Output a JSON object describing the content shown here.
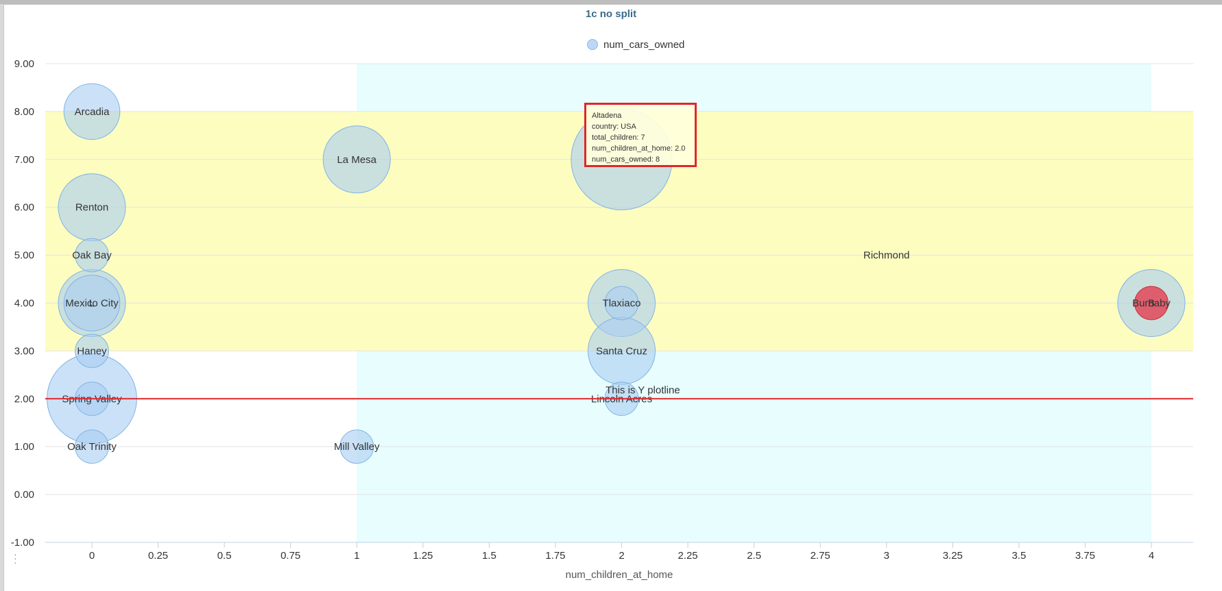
{
  "chart_data": {
    "type": "bubble",
    "title": "1c no split",
    "xlabel": "num_children_at_home",
    "ylabel": "",
    "xlim": [
      -0.18,
      4.16
    ],
    "ylim": [
      -1,
      9
    ],
    "x_ticks": [
      0,
      0.25,
      0.5,
      0.75,
      1,
      1.25,
      1.5,
      1.75,
      2,
      2.25,
      2.5,
      2.75,
      3,
      3.25,
      3.5,
      3.75,
      4
    ],
    "x_tick_labels": [
      "0",
      "0.25",
      "0.5",
      "0.75",
      "1",
      "1.25",
      "1.5",
      "1.75",
      "2",
      "2.25",
      "2.5",
      "2.75",
      "3",
      "3.25",
      "3.5",
      "3.75",
      "4"
    ],
    "y_ticks": [
      -1,
      0,
      1,
      2,
      3,
      4,
      5,
      6,
      7,
      8,
      9
    ],
    "y_tick_labels": [
      "-1.00",
      "0.00",
      "1.00",
      "2.00",
      "3.00",
      "4.00",
      "5.00",
      "6.00",
      "7.00",
      "8.00",
      "9.00"
    ],
    "grid": true,
    "legend": {
      "position": "top-center",
      "entries": [
        "num_cars_owned"
      ]
    },
    "series": [
      {
        "name": "num_cars_owned",
        "color": "#a8cdf2",
        "points": [
          {
            "label": "Arcadia",
            "x": 0,
            "y": 8,
            "size": 4
          },
          {
            "label": "Renton",
            "x": 0,
            "y": 6,
            "size": 5
          },
          {
            "label": "Oak Bay",
            "x": 0,
            "y": 5,
            "size": 2
          },
          {
            "label": "Mexico City",
            "x": 0,
            "y": 4,
            "size": 5
          },
          {
            "label": "L",
            "x": 0,
            "y": 4,
            "size": 4
          },
          {
            "label": "Haney",
            "x": 0,
            "y": 3,
            "size": 2
          },
          {
            "label": "Spring Valley",
            "x": 0,
            "y": 2,
            "size": 7
          },
          {
            "label": "",
            "x": 0,
            "y": 2,
            "size": 2
          },
          {
            "label": "Oak Trinity",
            "x": 0,
            "y": 1,
            "size": 2
          },
          {
            "label": "La Mesa",
            "x": 1,
            "y": 7,
            "size": 5
          },
          {
            "label": "Mill Valley",
            "x": 1,
            "y": 1,
            "size": 2
          },
          {
            "label": "Altadena",
            "x": 2,
            "y": 7,
            "size": 8
          },
          {
            "label": "Tlaxiaco",
            "x": 2,
            "y": 4,
            "size": 5
          },
          {
            "label": "",
            "x": 2,
            "y": 4,
            "size": 2
          },
          {
            "label": "Santa Cruz",
            "x": 2,
            "y": 3,
            "size": 5
          },
          {
            "label": "Lincoln Acres",
            "x": 2,
            "y": 2,
            "size": 2
          },
          {
            "label": "Burnaby",
            "x": 4,
            "y": 4,
            "size": 5
          },
          {
            "label": "B",
            "x": 4,
            "y": 4,
            "size": 2,
            "color": "#e05060"
          }
        ]
      }
    ],
    "plot_bands": [
      {
        "axis": "x",
        "from": 1,
        "to": 4,
        "color": "#e8fdfd"
      },
      {
        "axis": "y",
        "from": 3,
        "to": 8,
        "color": "#fdfdc0"
      }
    ],
    "plot_lines": [
      {
        "axis": "y",
        "value": 2,
        "label": "This is Y plotline",
        "color": "#e0262b"
      }
    ],
    "annotations": [
      {
        "text": "Richmond",
        "x": 3,
        "y": 5
      }
    ],
    "tooltip": {
      "lines": [
        "Altadena",
        "country: USA",
        "total_children: 7",
        "num_children_at_home: 2.0",
        "num_cars_owned: 8"
      ]
    }
  }
}
